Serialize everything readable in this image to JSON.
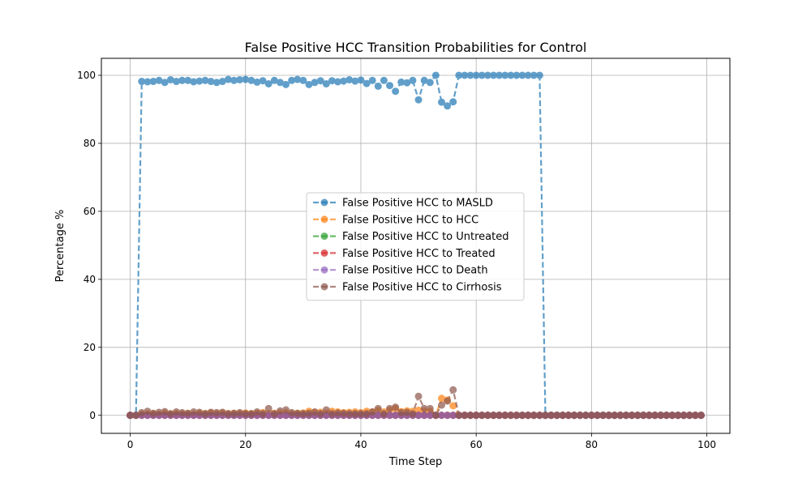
{
  "chart_data": {
    "type": "line",
    "title": "False Positive HCC Transition Probabilities for Control",
    "xlabel": "Time Step",
    "ylabel": "Percentage %",
    "xlim": [
      -5,
      104
    ],
    "ylim": [
      -5.3,
      105
    ],
    "xticks": [
      0,
      20,
      40,
      60,
      80,
      100
    ],
    "yticks": [
      0,
      20,
      40,
      60,
      80,
      100
    ],
    "grid": true,
    "legend_position": "center",
    "series": [
      {
        "name": "False Positive HCC to MASLD",
        "color": "#1f77b4",
        "values": [
          0,
          0,
          98.2,
          98.1,
          98.2,
          98.5,
          97.9,
          98.7,
          98.2,
          98.5,
          98.5,
          98.1,
          98.3,
          98.5,
          98.2,
          97.9,
          98.2,
          98.8,
          98.5,
          98.7,
          98.8,
          98.5,
          98.0,
          98.4,
          97.5,
          98.5,
          97.9,
          97.3,
          98.5,
          98.8,
          98.5,
          97.3,
          97.9,
          98.4,
          97.5,
          98.4,
          98.1,
          98.3,
          98.7,
          98.3,
          98.6,
          97.6,
          98.5,
          96.8,
          98.5,
          97.0,
          95.3,
          98.0,
          97.8,
          98.5,
          92.8,
          98.5,
          97.9,
          100,
          92.1,
          91.0,
          92.2,
          100,
          100,
          100,
          100,
          100,
          100,
          100,
          100,
          100,
          100,
          100,
          100,
          100,
          100,
          100,
          0,
          0,
          0,
          0,
          0,
          0,
          0,
          0,
          0,
          0,
          0,
          0,
          0,
          0,
          0,
          0,
          0,
          0,
          0,
          0,
          0,
          0,
          0,
          0,
          0,
          0,
          0,
          0
        ]
      },
      {
        "name": "False Positive HCC to HCC",
        "color": "#ff7f0e",
        "values": [
          0,
          0,
          0.3,
          0.4,
          0.5,
          0.3,
          0.6,
          0.4,
          0.5,
          0.4,
          0.5,
          0.3,
          0.6,
          0.5,
          0.7,
          0.5,
          0.7,
          0.5,
          0.6,
          0.5,
          0.7,
          0.5,
          0.6,
          0.8,
          0.5,
          0.6,
          0.7,
          0.8,
          0.5,
          0.6,
          0.7,
          1.2,
          0.8,
          0.9,
          0.7,
          1.2,
          1.0,
          0.8,
          0.9,
          1.0,
          0.8,
          1.2,
          1.0,
          1.4,
          1.0,
          1.5,
          2.0,
          1.1,
          1.3,
          1.2,
          1.5,
          1.3,
          1.2,
          0,
          5.0,
          4.5,
          2.8,
          0,
          0,
          0,
          0,
          0,
          0,
          0,
          0,
          0,
          0,
          0,
          0,
          0,
          0,
          0,
          0,
          0,
          0,
          0,
          0,
          0,
          0,
          0,
          0,
          0,
          0,
          0,
          0,
          0,
          0,
          0,
          0,
          0,
          0,
          0,
          0,
          0,
          0,
          0,
          0,
          0,
          0,
          0
        ]
      },
      {
        "name": "False Positive HCC to Untreated",
        "color": "#2ca02c",
        "values": [
          0,
          0,
          0,
          0,
          0,
          0,
          0,
          0,
          0,
          0,
          0,
          0,
          0,
          0,
          0,
          0,
          0,
          0,
          0,
          0,
          0,
          0,
          0,
          0,
          0,
          0,
          0,
          0,
          0,
          0,
          0,
          0,
          0,
          0,
          0,
          0,
          0,
          0,
          0,
          0,
          0,
          0,
          0,
          0,
          0,
          0,
          0,
          0,
          0,
          0,
          0,
          0,
          0,
          0,
          0,
          0,
          0,
          0,
          0,
          0,
          0,
          0,
          0,
          0,
          0,
          0,
          0,
          0,
          0,
          0,
          0,
          0,
          0,
          0,
          0,
          0,
          0,
          0,
          0,
          0,
          0,
          0,
          0,
          0,
          0,
          0,
          0,
          0,
          0,
          0,
          0,
          0,
          0,
          0,
          0,
          0,
          0,
          0,
          0,
          0
        ]
      },
      {
        "name": "False Positive HCC to Treated",
        "color": "#d62728",
        "values": [
          0,
          0,
          0,
          0,
          0,
          0,
          0,
          0,
          0,
          0,
          0,
          0,
          0,
          0,
          0,
          0,
          0,
          0,
          0,
          0,
          0,
          0,
          0,
          0,
          0,
          0,
          0,
          0,
          0,
          0,
          0,
          0,
          0,
          0,
          0,
          0,
          0,
          0,
          0,
          0,
          0,
          0,
          0,
          0,
          0,
          0,
          0,
          0,
          0,
          0,
          0,
          0,
          0,
          0,
          0,
          0,
          0,
          0,
          0,
          0,
          0,
          0,
          0,
          0,
          0,
          0,
          0,
          0,
          0,
          0,
          0,
          0,
          0,
          0,
          0,
          0,
          0,
          0,
          0,
          0,
          0,
          0,
          0,
          0,
          0,
          0,
          0,
          0,
          0,
          0,
          0,
          0,
          0,
          0,
          0,
          0,
          0,
          0,
          0,
          0
        ]
      },
      {
        "name": "False Positive HCC to Death",
        "color": "#9467bd",
        "values": [
          0,
          0,
          0,
          0,
          0,
          0,
          0,
          0,
          0,
          0,
          0,
          0,
          0,
          0,
          0,
          0,
          0,
          0,
          0,
          0,
          0,
          0,
          0,
          0,
          0,
          0,
          0,
          0,
          0,
          0,
          0,
          0,
          0,
          0,
          0,
          0,
          0,
          0,
          0,
          0,
          0,
          0,
          0,
          0,
          0,
          0,
          0,
          0,
          0,
          0,
          0,
          0,
          0,
          0,
          0,
          0,
          0,
          0,
          0,
          0,
          0,
          0,
          0,
          0,
          0,
          0,
          0,
          0,
          0,
          0,
          0,
          0,
          0,
          0,
          0,
          0,
          0,
          0,
          0,
          0,
          0,
          0,
          0,
          0,
          0,
          0,
          0,
          0,
          0,
          0,
          0,
          0,
          0,
          0,
          0,
          0,
          0,
          0,
          0,
          0
        ]
      },
      {
        "name": "False Positive HCC to Cirrhosis",
        "color": "#8c564b",
        "values": [
          0,
          0,
          0.8,
          1.2,
          0.6,
          0.9,
          1.1,
          0.5,
          1.0,
          0.8,
          0.6,
          1.0,
          0.9,
          0.5,
          0.9,
          0.8,
          0.9,
          0.5,
          0.6,
          0.8,
          0.5,
          0.5,
          1.0,
          0.5,
          2.0,
          0.5,
          1.3,
          1.6,
          0.8,
          0.6,
          0.5,
          0.6,
          1.0,
          0.5,
          1.6,
          0.5,
          0.7,
          0.6,
          0.5,
          0.5,
          0.5,
          0.5,
          1.0,
          2.0,
          0.5,
          2.0,
          2.4,
          0.8,
          0.9,
          0.5,
          5.6,
          2.0,
          2.0,
          0,
          3.0,
          4.2,
          7.5,
          0,
          0,
          0,
          0,
          0,
          0,
          0,
          0,
          0,
          0,
          0,
          0,
          0,
          0,
          0,
          0,
          0,
          0,
          0,
          0,
          0,
          0,
          0,
          0,
          0,
          0,
          0,
          0,
          0,
          0,
          0,
          0,
          0,
          0,
          0,
          0,
          0,
          0,
          0,
          0,
          0,
          0,
          0
        ]
      }
    ]
  }
}
